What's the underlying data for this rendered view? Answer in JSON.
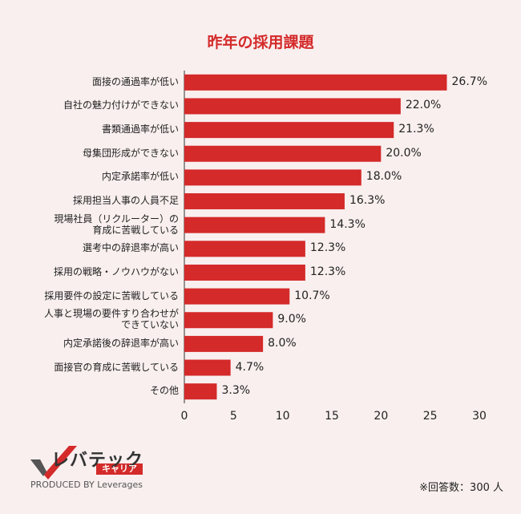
{
  "chart_data": {
    "type": "bar",
    "orientation": "horizontal",
    "title": "昨年の採用課題",
    "categories": [
      "面接の通過率が低い",
      "自社の魅力付けができない",
      "書類通過率が低い",
      "母集団形成ができない",
      "内定承諾率が低い",
      "採用担当人事の人員不足",
      "現場社員（リクルーター）の\n育成に苦戦している",
      "選考中の辞退率が高い",
      "採用の戦略・ノウハウがない",
      "採用要件の設定に苦戦している",
      "人事と現場の要件すり合わせが\nできていない",
      "内定承諾後の辞退率が高い",
      "面接官の育成に苦戦している",
      "その他"
    ],
    "values": [
      26.7,
      22.0,
      21.3,
      20.0,
      18.0,
      16.3,
      14.3,
      12.3,
      12.3,
      10.7,
      9.0,
      8.0,
      4.7,
      3.3
    ],
    "value_labels": [
      "26.7%",
      "22.0%",
      "21.3%",
      "20.0%",
      "18.0%",
      "16.3%",
      "14.3%",
      "12.3%",
      "12.3%",
      "10.7%",
      "9.0%",
      "8.0%",
      "4.7%",
      "3.3%"
    ],
    "color": "#d42a2a",
    "xlim": [
      0,
      30
    ],
    "xticks": [
      0,
      5,
      10,
      15,
      20,
      25,
      30
    ]
  },
  "logo": {
    "name": "レバテック",
    "sub": "キャリア",
    "tagline": "PRODUCED BY Leverages"
  },
  "footnote": "※回答数：300 人"
}
